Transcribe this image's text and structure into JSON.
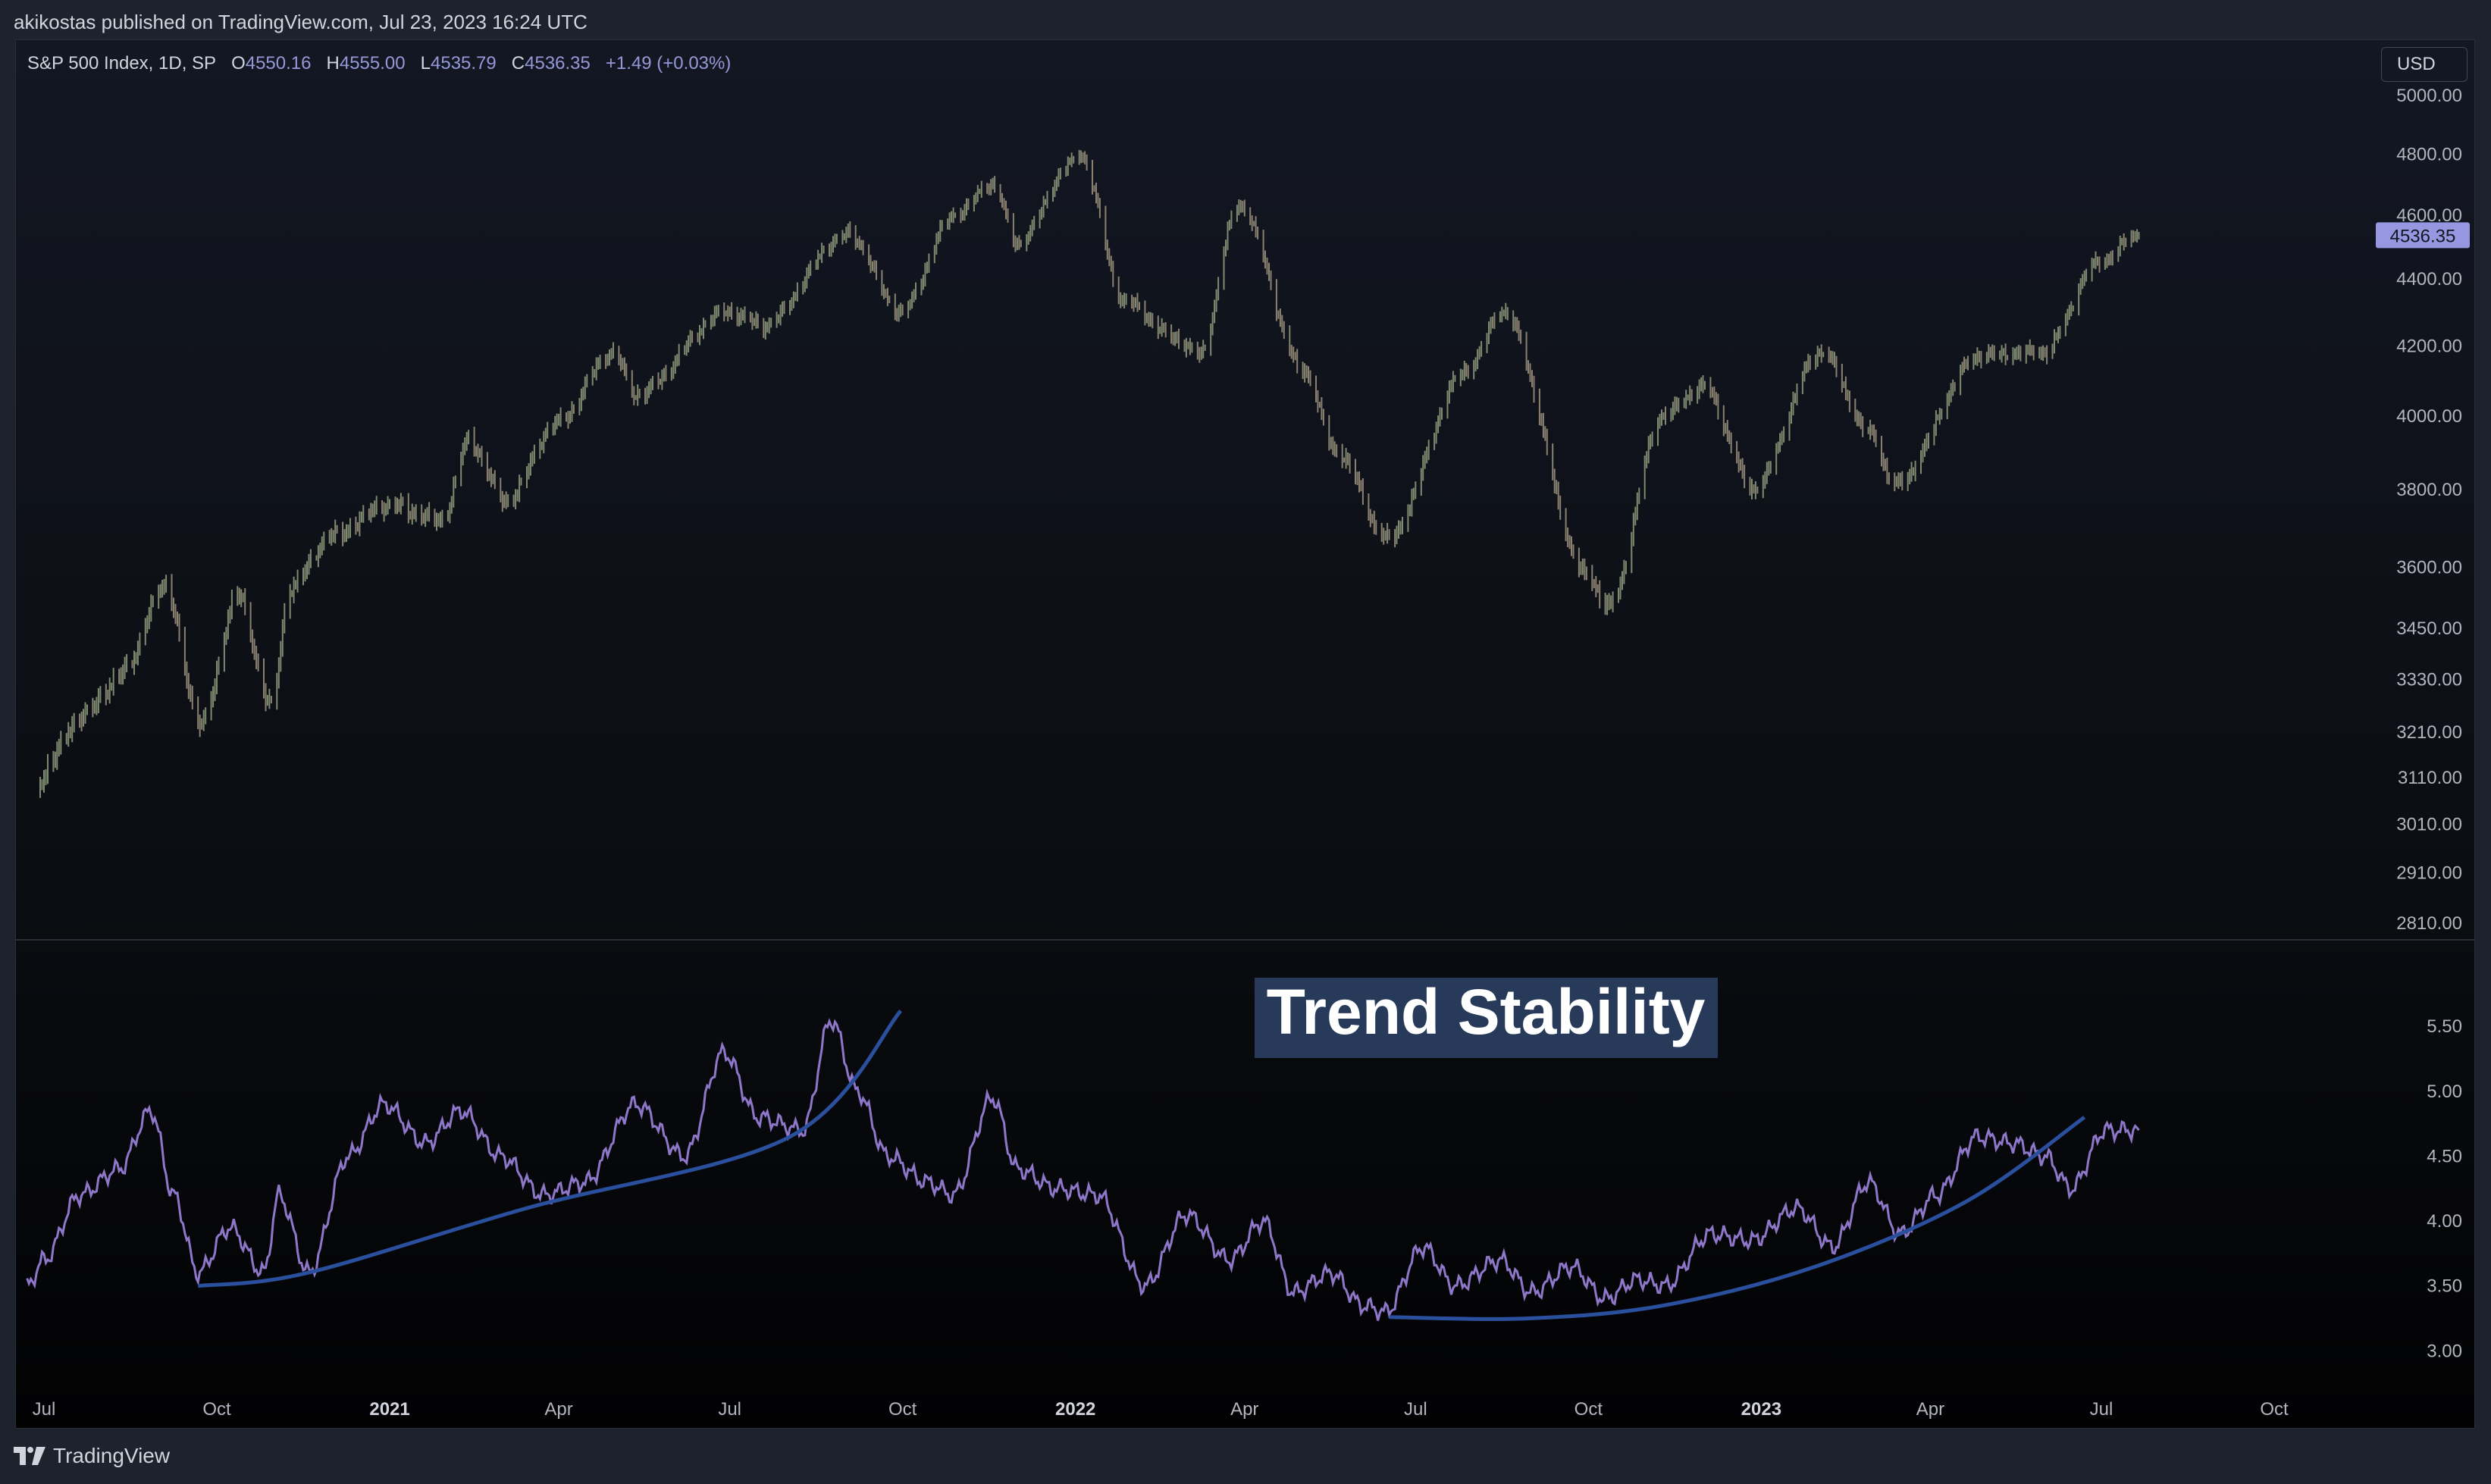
{
  "header": {
    "published": "akikostas published on TradingView.com, Jul 23, 2023 16:24 UTC"
  },
  "legend": {
    "symbol": "S&P 500 Index, 1D, SP",
    "open_label": "O",
    "open": "4550.16",
    "high_label": "H",
    "high": "4555.00",
    "low_label": "L",
    "low": "4535.79",
    "close_label": "C",
    "close": "4536.35",
    "change": "+1.49 (+0.03%)"
  },
  "currency": "USD",
  "last_price_label": "4536.35",
  "annotation": "Trend Stability",
  "footer": {
    "brand": "TradingView"
  },
  "colors": {
    "price_bars": "#8c8c80",
    "oscillator": "#8e76c9",
    "trendline": "#2a4f9c",
    "last_price_badge": "#9598e1",
    "annotation_bg": "#283a5a"
  },
  "chart_data": [
    {
      "type": "ohlc",
      "title": "S&P 500 Index, 1D, SP",
      "scale": "log",
      "y_ticks": [
        5000,
        4800,
        4600,
        4400,
        4200,
        4000,
        3800,
        3600,
        3450,
        3330,
        3210,
        3110,
        3010,
        2910,
        2810
      ],
      "ylim": [
        2810,
        5000
      ],
      "series": [
        {
          "x": [
            "2020-06-29",
            "2020-07-15",
            "2020-08-03",
            "2020-08-17",
            "2020-09-02",
            "2020-09-23",
            "2020-10-12",
            "2020-10-30",
            "2020-11-09",
            "2020-12-01",
            "2020-12-31",
            "2021-01-29",
            "2021-02-12",
            "2021-03-04",
            "2021-03-31",
            "2021-04-30",
            "2021-05-12",
            "2021-06-30",
            "2021-07-19",
            "2021-08-31",
            "2021-09-02",
            "2021-09-30",
            "2021-10-29",
            "2021-11-18",
            "2021-12-01",
            "2021-12-31",
            "2022-01-03",
            "2022-01-27",
            "2022-02-24",
            "2022-03-08",
            "2022-03-29",
            "2022-05-02",
            "2022-05-20",
            "2022-06-16",
            "2022-07-29",
            "2022-08-16",
            "2022-09-30",
            "2022-10-12",
            "2022-11-10",
            "2022-12-01",
            "2022-12-28",
            "2023-02-02",
            "2023-02-28",
            "2023-03-13",
            "2023-04-28",
            "2023-05-31",
            "2023-06-30",
            "2023-07-21"
          ],
          "values": [
            3100,
            3220,
            3300,
            3380,
            3560,
            3230,
            3530,
            3270,
            3550,
            3680,
            3760,
            3720,
            3930,
            3770,
            3980,
            4180,
            4060,
            4300,
            4260,
            4530,
            4540,
            4300,
            4600,
            4700,
            4510,
            4770,
            4800,
            4330,
            4220,
            4170,
            4630,
            4130,
            3900,
            3670,
            4130,
            4300,
            3580,
            3500,
            4000,
            4080,
            3800,
            4180,
            3950,
            3810,
            4170,
            4180,
            4450,
            4536
          ]
        }
      ]
    },
    {
      "type": "line",
      "annotation": "Trend Stability",
      "y_ticks": [
        5.5,
        5.0,
        4.5,
        4.0,
        3.5,
        3.0
      ],
      "ylim": [
        2.85,
        5.7
      ],
      "series": [
        {
          "x": [
            "2020-06-22",
            "2020-07-01",
            "2020-07-20",
            "2020-08-10",
            "2020-08-27",
            "2020-09-08",
            "2020-09-21",
            "2020-10-08",
            "2020-10-26",
            "2020-11-03",
            "2020-11-19",
            "2020-12-10",
            "2020-12-29",
            "2021-01-20",
            "2021-02-08",
            "2021-03-01",
            "2021-03-24",
            "2021-04-15",
            "2021-05-12",
            "2021-06-07",
            "2021-06-28",
            "2021-07-16",
            "2021-08-09",
            "2021-08-24",
            "2021-09-07",
            "2021-09-23",
            "2021-10-14",
            "2021-10-28",
            "2021-11-18",
            "2021-12-01",
            "2021-12-22",
            "2022-01-13",
            "2022-02-07",
            "2022-03-01",
            "2022-03-24",
            "2022-04-11",
            "2022-04-27",
            "2022-05-17",
            "2022-06-03",
            "2022-06-15",
            "2022-07-05",
            "2022-07-22",
            "2022-08-15",
            "2022-09-01",
            "2022-09-22",
            "2022-10-10",
            "2022-10-27",
            "2022-11-11",
            "2022-12-05",
            "2022-12-27",
            "2023-01-20",
            "2023-02-08",
            "2023-02-27",
            "2023-03-16",
            "2023-04-04",
            "2023-04-26",
            "2023-05-15",
            "2023-06-01",
            "2023-06-15",
            "2023-07-03",
            "2023-07-21"
          ],
          "values": [
            3.5,
            3.7,
            4.2,
            4.4,
            4.85,
            4.2,
            3.6,
            3.95,
            3.6,
            4.2,
            3.6,
            4.5,
            4.9,
            4.6,
            4.85,
            4.5,
            4.2,
            4.3,
            4.9,
            4.5,
            5.3,
            4.8,
            4.7,
            5.55,
            5.0,
            4.5,
            4.3,
            4.2,
            4.95,
            4.4,
            4.25,
            4.2,
            3.5,
            4.05,
            3.7,
            4.0,
            3.45,
            3.6,
            3.35,
            3.3,
            3.8,
            3.5,
            3.7,
            3.45,
            3.65,
            3.4,
            3.55,
            3.5,
            3.9,
            3.85,
            4.1,
            3.8,
            4.3,
            3.9,
            4.2,
            4.65,
            4.6,
            4.5,
            4.25,
            4.7,
            4.7
          ]
        }
      ],
      "trendlines": [
        {
          "x": [
            "2020-09-21",
            "2020-11-18",
            "2021-03-15",
            "2021-08-02",
            "2021-09-30"
          ],
          "y": [
            3.5,
            3.6,
            4.1,
            4.65,
            5.62
          ]
        },
        {
          "x": [
            "2022-06-17",
            "2022-08-30",
            "2022-11-10",
            "2023-01-30",
            "2023-04-20",
            "2023-06-22"
          ],
          "y": [
            3.26,
            3.25,
            3.35,
            3.65,
            4.15,
            4.8
          ]
        }
      ]
    }
  ],
  "time_axis": {
    "labels": [
      {
        "text": "Jul",
        "date": "2020-07-01",
        "bold": false
      },
      {
        "text": "Oct",
        "date": "2020-10-01",
        "bold": false
      },
      {
        "text": "2021",
        "date": "2021-01-01",
        "bold": true
      },
      {
        "text": "Apr",
        "date": "2021-04-01",
        "bold": false
      },
      {
        "text": "Jul",
        "date": "2021-07-01",
        "bold": false
      },
      {
        "text": "Oct",
        "date": "2021-10-01",
        "bold": false
      },
      {
        "text": "2022",
        "date": "2022-01-01",
        "bold": true
      },
      {
        "text": "Apr",
        "date": "2022-04-01",
        "bold": false
      },
      {
        "text": "Jul",
        "date": "2022-07-01",
        "bold": false
      },
      {
        "text": "Oct",
        "date": "2022-10-01",
        "bold": false
      },
      {
        "text": "2023",
        "date": "2023-01-01",
        "bold": true
      },
      {
        "text": "Apr",
        "date": "2023-04-01",
        "bold": false
      },
      {
        "text": "Jul",
        "date": "2023-07-01",
        "bold": false
      },
      {
        "text": "Oct",
        "date": "2023-10-01",
        "bold": false
      }
    ]
  }
}
